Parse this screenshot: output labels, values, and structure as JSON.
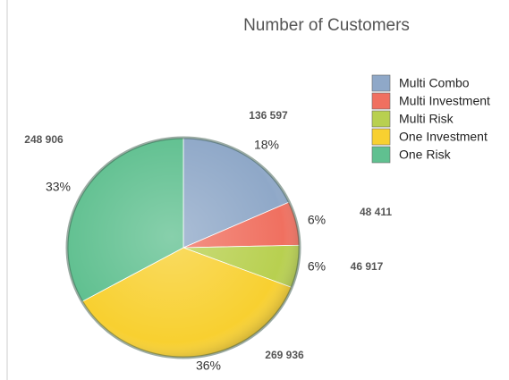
{
  "chart_data": {
    "type": "pie",
    "title": "Number of Customers",
    "categories": [
      "Multi Combo",
      "Multi Investment",
      "Multi Risk",
      "One Investment",
      "One Risk"
    ],
    "values": [
      136597,
      48411,
      46917,
      269936,
      248906
    ],
    "value_labels": [
      "136 597",
      "48 411",
      "46 917",
      "269 936",
      "248 906"
    ],
    "percent_labels": [
      "18%",
      "6%",
      "6%",
      "36%",
      "33%"
    ],
    "colors": [
      "#8fa8c8",
      "#f07060",
      "#b8d050",
      "#f8d030",
      "#60c090"
    ],
    "legend": "top-right"
  }
}
